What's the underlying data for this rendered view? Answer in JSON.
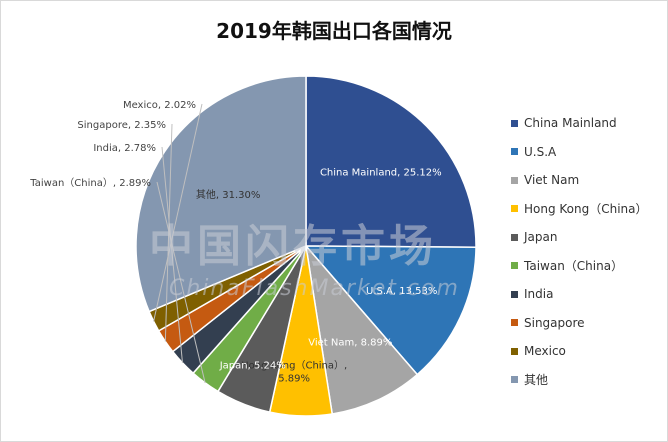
{
  "chart_data": {
    "type": "pie",
    "title": "2019年韩国出口各国情况",
    "legend_position": "right",
    "categories": [
      "China Mainland",
      "U.S.A",
      "Viet Nam",
      "Hong Kong（China）",
      "Japan",
      "Taiwan（China）",
      "India",
      "Singapore",
      "Mexico",
      "其他"
    ],
    "legend_labels": [
      "China Mainland",
      "U.S.A",
      "Viet Nam",
      "Hong Kong（China）",
      "Japan",
      "Taiwan（China）",
      "India",
      "Singapore",
      "Mexico",
      "其他"
    ],
    "values": [
      25.12,
      13.53,
      8.89,
      5.89,
      5.24,
      2.89,
      2.78,
      2.35,
      2.02,
      31.3
    ],
    "data_labels": [
      "China Mainland, 25.12%",
      "U.S.A, 13.53%",
      "Viet Nam, 8.89%",
      "Hong Kong（China）, 5.89%",
      "Japan, 5.24%",
      "Taiwan（China）, 2.89%",
      "India, 2.78%",
      "Singapore, 2.35%",
      "Mexico, 2.02%",
      "其他, 31.30%"
    ],
    "colors": [
      "#2f4f91",
      "#2e75b6",
      "#a5a5a5",
      "#ffc000",
      "#5b5b5b",
      "#70ad47",
      "#333f50",
      "#c55a11",
      "#7f6000",
      "#8497b0"
    ]
  },
  "watermark": {
    "text_cn": "中国闪存市场",
    "text_en": "ChinaFlashMarket.com"
  }
}
